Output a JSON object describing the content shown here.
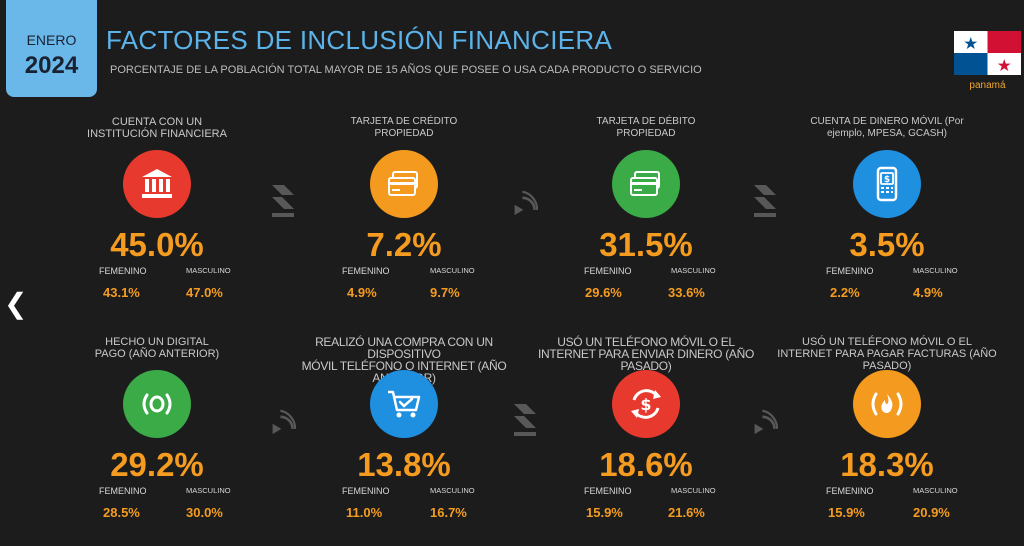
{
  "header": {
    "month": "ENERO",
    "year": "2024",
    "title": "FACTORES DE INCLUSIÓN FINANCIERA",
    "subtitle": "PORCENTAJE DE LA POBLACIÓN TOTAL MAYOR DE 15 AÑOS QUE POSEE O USA CADA PRODUCTO O SERVICIO",
    "country": "panamá"
  },
  "colors": {
    "accent": "#5bb3ea",
    "value": "#f59c20",
    "red": "#e8392e",
    "orange": "#f39a1f",
    "green": "#3bab48",
    "blue": "#1f8fe0"
  },
  "cards": [
    {
      "label": "CUENTA CON UN\nINSTITUCIÓN FINANCIERA",
      "icon": "bank-icon",
      "color": "#e8392e",
      "value": "45.0%",
      "fem_label": "FEMENINO",
      "masc_label": "MASCULINO",
      "fem_value": "43.1%",
      "masc_value": "47.0%"
    },
    {
      "label": "TARJETA DE CRÉDITO\nPROPIEDAD",
      "icon": "credit-card-icon",
      "color": "#f39a1f",
      "value": "7.2%",
      "fem_label": "FEMENINO",
      "masc_label": "MASCULINO",
      "fem_value": "4.9%",
      "masc_value": "9.7%"
    },
    {
      "label": "TARJETA DE DÉBITO\nPROPIEDAD",
      "icon": "debit-card-icon",
      "color": "#3bab48",
      "value": "31.5%",
      "fem_label": "FEMENINO",
      "masc_label": "MASCULINO",
      "fem_value": "29.6%",
      "masc_value": "33.6%"
    },
    {
      "label": "CUENTA DE DINERO MÓVIL (Por\nejemplo, MPESA, GCASH)",
      "icon": "mobile-money-icon",
      "color": "#1f8fe0",
      "value": "3.5%",
      "fem_label": "FEMENINO",
      "masc_label": "MASCULINO",
      "fem_value": "2.2%",
      "masc_value": "4.9%"
    },
    {
      "label": "HECHO UN DIGITAL\nPAGO (AÑO ANTERIOR)",
      "icon": "digital-payment-icon",
      "color": "#3bab48",
      "value": "29.2%",
      "fem_label": "FEMENINO",
      "masc_label": "MASCULINO",
      "fem_value": "28.5%",
      "masc_value": "30.0%"
    },
    {
      "label": "REALIZÓ UNA COMPRA CON UN DISPOSITIVO\nMÓVIL TELÉFONO O INTERNET (AÑO ANTERIOR)",
      "icon": "shopping-cart-icon",
      "color": "#1f8fe0",
      "value": "13.8%",
      "fem_label": "FEMENINO",
      "masc_label": "MASCULINO",
      "fem_value": "11.0%",
      "masc_value": "16.7%"
    },
    {
      "label": "USÓ UN TELÉFONO MÓVIL O EL\nINTERNET PARA ENVIAR DINERO (AÑO PASADO)",
      "icon": "send-money-icon",
      "color": "#e8392e",
      "value": "18.6%",
      "fem_label": "FEMENINO",
      "masc_label": "MASCULINO",
      "fem_value": "15.9%",
      "masc_value": "21.6%"
    },
    {
      "label": "USÓ UN TELÉFONO MÓVIL O EL\nINTERNET PARA PAGAR FACTURAS (AÑO PASADO)",
      "icon": "bill-payment-icon",
      "color": "#f39a1f",
      "value": "18.3%",
      "fem_label": "FEMENINO",
      "masc_label": "MASCULINO",
      "fem_value": "15.9%",
      "masc_value": "20.9%"
    }
  ]
}
